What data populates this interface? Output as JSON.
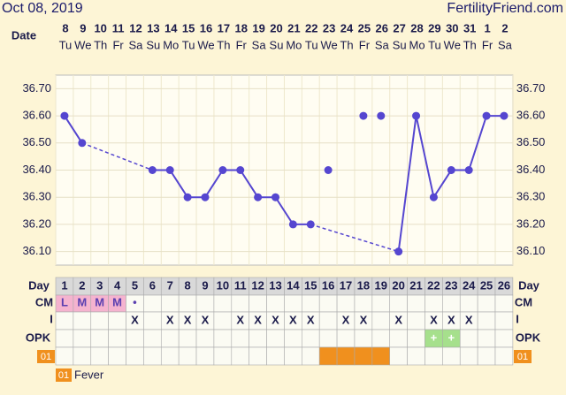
{
  "header": {
    "date": "Oct 08, 2019",
    "site": "FertilityFriend.com"
  },
  "chart_data": {
    "type": "line",
    "date_label": "Date",
    "dates": [
      "8",
      "9",
      "10",
      "11",
      "12",
      "13",
      "14",
      "15",
      "16",
      "17",
      "18",
      "19",
      "20",
      "21",
      "22",
      "23",
      "24",
      "25",
      "26",
      "27",
      "28",
      "29",
      "30",
      "31",
      "1",
      "2"
    ],
    "weekdays": [
      "Tu",
      "We",
      "Th",
      "Fr",
      "Sa",
      "Su",
      "Mo",
      "Tu",
      "We",
      "Th",
      "Fr",
      "Sa",
      "Su",
      "Mo",
      "Tu",
      "We",
      "Th",
      "Fr",
      "Sa",
      "Su",
      "Mo",
      "Tu",
      "We",
      "Th",
      "Fr",
      "Sa"
    ],
    "day_label": "Day",
    "days": [
      1,
      2,
      3,
      4,
      5,
      6,
      7,
      8,
      9,
      10,
      11,
      12,
      13,
      14,
      15,
      16,
      17,
      18,
      19,
      20,
      21,
      22,
      23,
      24,
      25,
      26
    ],
    "temps": [
      36.6,
      36.5,
      null,
      null,
      null,
      36.4,
      36.4,
      36.3,
      36.3,
      36.4,
      36.4,
      36.3,
      36.3,
      36.2,
      36.2,
      null,
      null,
      null,
      null,
      36.1,
      36.6,
      36.3,
      36.4,
      36.4,
      36.6,
      36.6
    ],
    "excluded_temps": [
      null,
      null,
      null,
      null,
      null,
      null,
      null,
      null,
      null,
      null,
      null,
      null,
      null,
      null,
      null,
      36.4,
      null,
      36.6,
      36.6,
      null,
      null,
      null,
      null,
      null,
      null,
      null
    ],
    "color": "#5546d0",
    "ylim": [
      36.05,
      36.75
    ],
    "yticks": [
      {
        "value": 36.1,
        "label": "36.10"
      },
      {
        "value": 36.2,
        "label": "36.20"
      },
      {
        "value": 36.3,
        "label": "36.30"
      },
      {
        "value": 36.4,
        "label": "36.40"
      },
      {
        "value": 36.5,
        "label": "36.50"
      },
      {
        "value": 36.6,
        "label": "36.60"
      },
      {
        "value": 36.7,
        "label": "36.70"
      }
    ],
    "cm_label": "CM",
    "cm": [
      "L",
      "M",
      "M",
      "M",
      "•",
      null,
      null,
      null,
      null,
      null,
      null,
      null,
      null,
      null,
      null,
      null,
      null,
      null,
      null,
      null,
      null,
      null,
      null,
      null,
      null,
      null
    ],
    "i_label": "I",
    "intercourse": [
      null,
      null,
      null,
      null,
      "X",
      null,
      "X",
      "X",
      "X",
      null,
      "X",
      "X",
      "X",
      "X",
      "X",
      null,
      "X",
      "X",
      null,
      "X",
      null,
      "X",
      "X",
      "X",
      null,
      null
    ],
    "opk_label": "OPK",
    "opk": [
      null,
      null,
      null,
      null,
      null,
      null,
      null,
      null,
      null,
      null,
      null,
      null,
      null,
      null,
      null,
      null,
      null,
      null,
      null,
      null,
      null,
      "+",
      "+",
      null,
      null,
      null
    ],
    "fever_label": "01",
    "fever": [
      null,
      null,
      null,
      null,
      null,
      null,
      null,
      null,
      null,
      null,
      null,
      null,
      null,
      null,
      null,
      true,
      true,
      true,
      true,
      null,
      null,
      null,
      null,
      null,
      null,
      null
    ],
    "legend": "Fever"
  }
}
